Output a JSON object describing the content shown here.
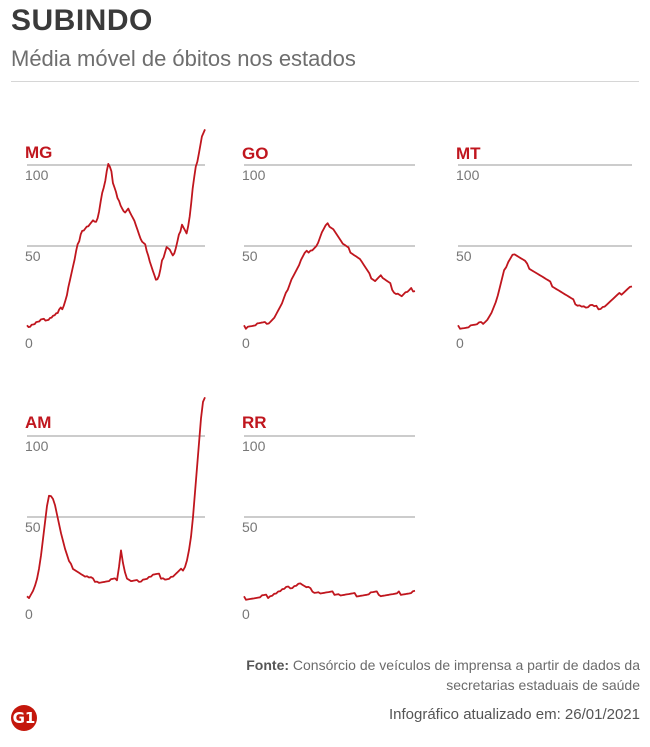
{
  "header": {
    "title": "SUBINDO",
    "subtitle": "Média móvel de óbitos nos estados"
  },
  "footer": {
    "source_label": "Fonte:",
    "source_text": "Consórcio de veículos de imprensa a partir de dados da secretarias estaduais de saúde",
    "updated": "Infográfico atualizado em: 26/01/2021",
    "logo": "G1"
  },
  "colors": {
    "line": "#c0161e",
    "state_label": "#c0161e",
    "grid": "#9a9a9a",
    "tick": "#777777"
  },
  "chart_data": [
    {
      "type": "line",
      "title": "MG",
      "ylim": [
        0,
        125
      ],
      "yticks": [
        0,
        50,
        100
      ],
      "series": [
        {
          "values": [
            0,
            1,
            1,
            2,
            2,
            2,
            3,
            3,
            3,
            4,
            4,
            4,
            5,
            5,
            5,
            6,
            6,
            7,
            7,
            8,
            8,
            10,
            11,
            12,
            14,
            17,
            20,
            25,
            29,
            33,
            37,
            41,
            46,
            50,
            54,
            58,
            60,
            60,
            61,
            62,
            62,
            63,
            64,
            65,
            64,
            66,
            68,
            72,
            78,
            83,
            86,
            90,
            96,
            100,
            98,
            95,
            90,
            87,
            84,
            80,
            78,
            75,
            73,
            71,
            70,
            71,
            72,
            72,
            70,
            68,
            66,
            63,
            60,
            57,
            54,
            52,
            51,
            50,
            48,
            45,
            41,
            38,
            35,
            32,
            29,
            29,
            31,
            35,
            40,
            44,
            47,
            50,
            49,
            48,
            46,
            44,
            45,
            48,
            52,
            56,
            60,
            64,
            62,
            60,
            58,
            62,
            68,
            76,
            85,
            92,
            98,
            103,
            108,
            113,
            118,
            120,
            122
          ]
        }
      ],
      "x_tick_labels": []
    },
    {
      "type": "line",
      "title": "GO",
      "ylim": [
        0,
        125
      ],
      "yticks": [
        0,
        50,
        100
      ],
      "series": [
        {
          "values": [
            0,
            0,
            1,
            1,
            1,
            1,
            1,
            2,
            2,
            2,
            2,
            2,
            3,
            3,
            4,
            5,
            6,
            8,
            10,
            12,
            14,
            17,
            20,
            24,
            27,
            30,
            32,
            34,
            36,
            38,
            41,
            43,
            45,
            46,
            47,
            48,
            48,
            49,
            50,
            52,
            55,
            58,
            60,
            62,
            63,
            63,
            62,
            61,
            59,
            57,
            55,
            53,
            51,
            50,
            49,
            48,
            47,
            46,
            45,
            44,
            43,
            42,
            40,
            38,
            36,
            34,
            32,
            31,
            30,
            29,
            30,
            31,
            32,
            30,
            29,
            28,
            27,
            26,
            24,
            22,
            21,
            21,
            20,
            19,
            20,
            21,
            21,
            22,
            23,
            23,
            23
          ]
        }
      ]
    },
    {
      "type": "line",
      "title": "MT",
      "ylim": [
        0,
        125
      ],
      "yticks": [
        0,
        50,
        100
      ],
      "series": [
        {
          "values": [
            0,
            0,
            0,
            0,
            0,
            0,
            1,
            1,
            1,
            1,
            2,
            2,
            3,
            4,
            5,
            7,
            9,
            12,
            15,
            19,
            24,
            29,
            34,
            38,
            41,
            43,
            45,
            45,
            44,
            43,
            42,
            41,
            40,
            38,
            37,
            36,
            35,
            34,
            33,
            32,
            31,
            30,
            29,
            28,
            27,
            26,
            25,
            24,
            23,
            22,
            21,
            20,
            19,
            18,
            17,
            16,
            15,
            14,
            14,
            13,
            13,
            12,
            12,
            13,
            13,
            12,
            12,
            12,
            12,
            13,
            13,
            14,
            15,
            16,
            17,
            18,
            19,
            20,
            21,
            22,
            23,
            24,
            25,
            25
          ]
        }
      ]
    },
    {
      "type": "line",
      "title": "AM",
      "ylim": [
        0,
        125
      ],
      "yticks": [
        0,
        50,
        100
      ],
      "series": [
        {
          "values": [
            0,
            1,
            3,
            5,
            8,
            12,
            18,
            26,
            36,
            46,
            56,
            62,
            64,
            62,
            58,
            52,
            46,
            40,
            35,
            30,
            26,
            22,
            20,
            19,
            18,
            17,
            16,
            15,
            14,
            13,
            13,
            12,
            12,
            11,
            11,
            11,
            10,
            10,
            10,
            10,
            10,
            10,
            11,
            11,
            11,
            12,
            20,
            30,
            22,
            16,
            12,
            11,
            10,
            10,
            10,
            10,
            11,
            11,
            12,
            12,
            12,
            13,
            13,
            14,
            14,
            14,
            14,
            13,
            13,
            12,
            12,
            12,
            13,
            13,
            14,
            15,
            16,
            17,
            18,
            20,
            24,
            30,
            38,
            50,
            65,
            80,
            95,
            110,
            120,
            125
          ]
        }
      ]
    },
    {
      "type": "line",
      "title": "RR",
      "ylim": [
        0,
        125
      ],
      "yticks": [
        0,
        50,
        100
      ],
      "series": [
        {
          "values": [
            0,
            0,
            0,
            0,
            0,
            0,
            0,
            0,
            0,
            1,
            1,
            1,
            1,
            2,
            2,
            3,
            3,
            4,
            4,
            5,
            5,
            6,
            6,
            7,
            7,
            8,
            8,
            9,
            9,
            8,
            7,
            6,
            6,
            5,
            5,
            4,
            4,
            4,
            3,
            3,
            3,
            3,
            3,
            3,
            3,
            3,
            3,
            3,
            2,
            2,
            2,
            2,
            2,
            2,
            2,
            2,
            2,
            2,
            2,
            2,
            2,
            2,
            2,
            3,
            3,
            3,
            3,
            3,
            2,
            2,
            2,
            2,
            2,
            2,
            2,
            2,
            2,
            3,
            3,
            3,
            3,
            3,
            3,
            3,
            4,
            4
          ]
        }
      ]
    }
  ]
}
